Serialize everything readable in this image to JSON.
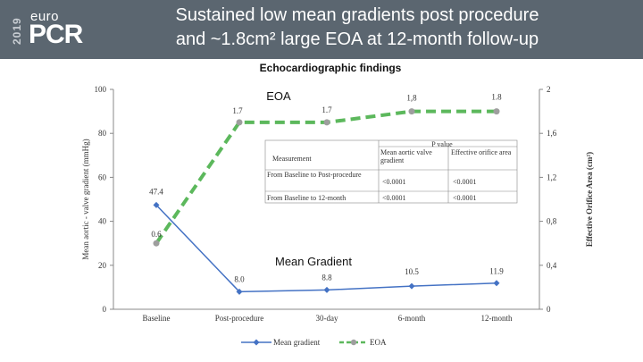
{
  "header": {
    "logo_year": "2019",
    "logo_top": "euro",
    "logo_main": "PCR",
    "title_line1": "Sustained low mean gradients post procedure",
    "title_line2": "and ~1.8cm² large EOA at 12-month follow-up"
  },
  "chart_data": {
    "type": "line",
    "title": "Echocardiographic findings",
    "categories": [
      "Baseline",
      "Post-procedure",
      "30-day",
      "6-month",
      "12-month"
    ],
    "ylabel": "Mean aortic - valve gradient (mmHg)",
    "y2label": "Effective Orifice Area (cm²)",
    "ylim": [
      0,
      100
    ],
    "y2lim": [
      0,
      2
    ],
    "yticks": [
      "0",
      "20",
      "40",
      "60",
      "80",
      "100"
    ],
    "y2ticks": [
      "0",
      "0,4",
      "0,8",
      "1,2",
      "1,6",
      "2"
    ],
    "series": [
      {
        "name": "Mean gradient",
        "axis": "left",
        "color": "#4472c4",
        "values": [
          47.4,
          8.0,
          8.8,
          10.5,
          11.9
        ],
        "labels": [
          "47.4",
          "8.0",
          "8.8",
          "10.5",
          "11.9"
        ],
        "annotation": "Mean Gradient"
      },
      {
        "name": "EOA",
        "axis": "right",
        "color": "#5cb85c",
        "values": [
          0.6,
          1.7,
          1.7,
          1.8,
          1.8
        ],
        "labels": [
          "0.6",
          "1.7",
          "1.7",
          "1,8",
          "1.8"
        ],
        "annotation": "EOA"
      }
    ],
    "legend_position": "bottom"
  },
  "stats_table": {
    "p_header": "P value",
    "col_measurement": "Measurement",
    "col_gradient": "Mean aortic valve gradient",
    "col_eoa": "Effective orifice area",
    "rows": [
      {
        "measurement": "From Baseline to Post-procedure",
        "gradient": "<0.0001",
        "eoa": "<0.0001"
      },
      {
        "measurement": "From Baseline to 12-month",
        "gradient": "<0.0001",
        "eoa": "<0.0001"
      }
    ]
  }
}
